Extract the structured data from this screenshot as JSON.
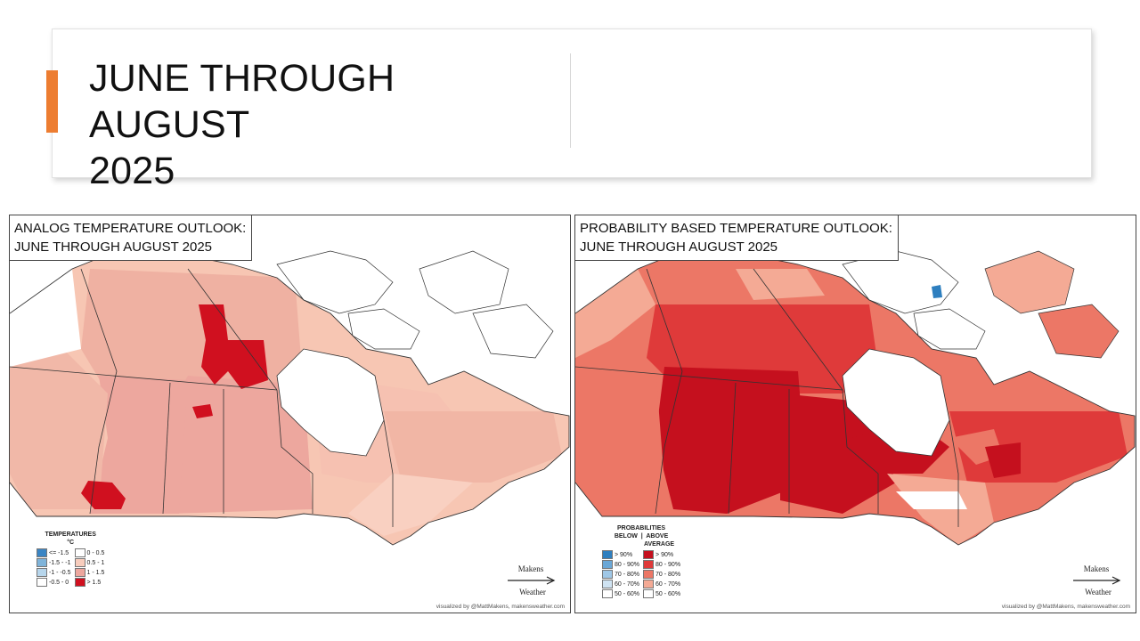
{
  "slide": {
    "title_line1": "JUNE THROUGH AUGUST",
    "title_line2": "2025",
    "accent_color": "#ed7d31"
  },
  "left_map": {
    "title_line1": "ANALOG TEMPERATURE OUTLOOK:",
    "title_line2": "JUNE THROUGH AUGUST 2025",
    "legend": {
      "heading": "TEMPERATURES",
      "unit": "°C",
      "items": [
        {
          "label": "<= -1.5",
          "color": "#3a85c4"
        },
        {
          "label": "0 - 0.5",
          "color": "#ffffff"
        },
        {
          "label": "-1.5 - -1",
          "color": "#7fb4da"
        },
        {
          "label": "0.5 - 1",
          "color": "#f8cdbd"
        },
        {
          "label": "-1 - -0.5",
          "color": "#b7d6ec"
        },
        {
          "label": "1 - 1.5",
          "color": "#eda79e"
        },
        {
          "label": "-0.5 - 0",
          "color": "#ffffff"
        },
        {
          "label": "> 1.5",
          "color": "#d0101f"
        }
      ]
    },
    "credit": "visualized by @MattMakens, makensweather.com",
    "logo_text_top": "Makens",
    "logo_text_bottom": "Weather"
  },
  "right_map": {
    "title_line1": "PROBABILITY BASED TEMPERATURE OUTLOOK:",
    "title_line2": "JUNE THROUGH AUGUST 2025",
    "legend": {
      "heading": "PROBABILITIES",
      "subheading": "BELOW  |  ABOVE",
      "subheading2": "AVERAGE",
      "items": [
        {
          "label": "> 90%",
          "color": "#2e7fbf"
        },
        {
          "label": "> 90%",
          "color": "#c5101e"
        },
        {
          "label": "80 - 90%",
          "color": "#6aa7d6"
        },
        {
          "label": "80 - 90%",
          "color": "#df3a3a"
        },
        {
          "label": "70 - 80%",
          "color": "#9fc7e6"
        },
        {
          "label": "70 - 80%",
          "color": "#ec7766"
        },
        {
          "label": "60 - 70%",
          "color": "#cfe3f2"
        },
        {
          "label": "60 - 70%",
          "color": "#f4aa95"
        },
        {
          "label": "50 - 60%",
          "color": "#ffffff"
        },
        {
          "label": "50 - 60%",
          "color": "#ffffff"
        }
      ]
    },
    "credit": "visualized by @MattMakens, makensweather.com",
    "logo_text_top": "Makens",
    "logo_text_bottom": "Weather"
  }
}
